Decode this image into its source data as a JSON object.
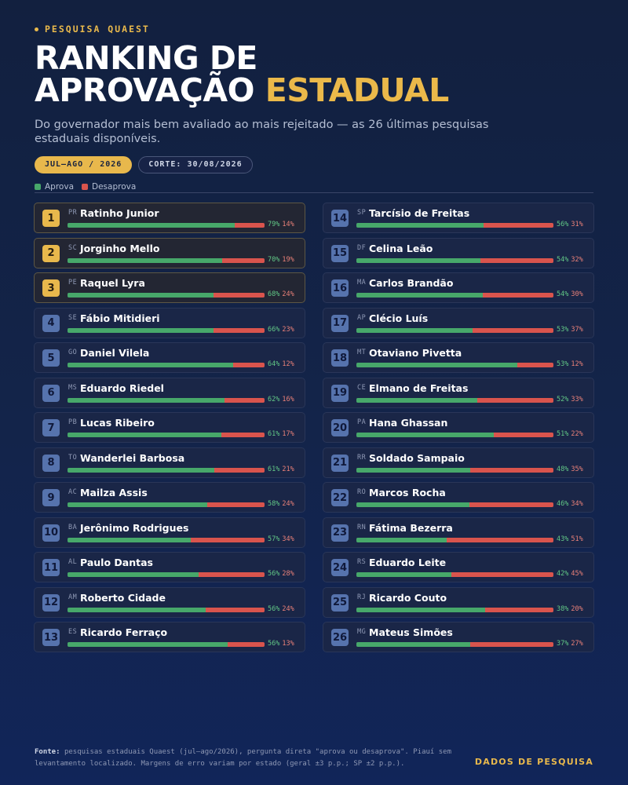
{
  "header": {
    "eyebrow": "PESQUISA QUAEST",
    "title_line1": "RANKING DE",
    "title_line2_plain": "APROVAÇÃO",
    "title_line2_accent": "ESTADUAL",
    "subtitle": "Do governador mais bem avaliado ao mais rejeitado — as 26 últimas pesquisas estaduais disponíveis.",
    "period_pill": "JUL–AGO / 2026",
    "cutoff_pill": "CORTE: 30/08/2026"
  },
  "legend": {
    "approve_label": "Aprova",
    "disapprove_label": "Desaprova"
  },
  "colors": {
    "approve": "#47a86a",
    "disapprove": "#d9544d",
    "accent": "#e8b84c",
    "background": "#13244a"
  },
  "footer": {
    "source_label": "Fonte:",
    "source_text": "pesquisas estaduais Quaest (jul–ago/2026), pergunta direta \"aprova ou desaprova\". Piauí sem levantamento localizado. Margens de erro variam por estado (geral ±3 p.p.; SP ±2 p.p.).",
    "brand": "DADOS DE PESQUISA"
  },
  "chart_data": {
    "type": "bar",
    "stacked": true,
    "orientation": "horizontal",
    "unit": "%",
    "items": [
      {
        "rank": 1,
        "uf": "PR",
        "name": "Ratinho Junior",
        "approve": 79,
        "disapprove": 14
      },
      {
        "rank": 2,
        "uf": "SC",
        "name": "Jorginho Mello",
        "approve": 70,
        "disapprove": 19
      },
      {
        "rank": 3,
        "uf": "PE",
        "name": "Raquel Lyra",
        "approve": 68,
        "disapprove": 24
      },
      {
        "rank": 4,
        "uf": "SE",
        "name": "Fábio Mitidieri",
        "approve": 66,
        "disapprove": 23
      },
      {
        "rank": 5,
        "uf": "GO",
        "name": "Daniel Vilela",
        "approve": 64,
        "disapprove": 12
      },
      {
        "rank": 6,
        "uf": "MS",
        "name": "Eduardo Riedel",
        "approve": 62,
        "disapprove": 16
      },
      {
        "rank": 7,
        "uf": "PB",
        "name": "Lucas Ribeiro",
        "approve": 61,
        "disapprove": 17
      },
      {
        "rank": 8,
        "uf": "TO",
        "name": "Wanderlei Barbosa",
        "approve": 61,
        "disapprove": 21
      },
      {
        "rank": 9,
        "uf": "AC",
        "name": "Mailza Assis",
        "approve": 58,
        "disapprove": 24
      },
      {
        "rank": 10,
        "uf": "BA",
        "name": "Jerônimo Rodrigues",
        "approve": 57,
        "disapprove": 34
      },
      {
        "rank": 11,
        "uf": "AL",
        "name": "Paulo Dantas",
        "approve": 56,
        "disapprove": 28
      },
      {
        "rank": 12,
        "uf": "AM",
        "name": "Roberto Cidade",
        "approve": 56,
        "disapprove": 24
      },
      {
        "rank": 13,
        "uf": "ES",
        "name": "Ricardo Ferraço",
        "approve": 56,
        "disapprove": 13
      },
      {
        "rank": 14,
        "uf": "SP",
        "name": "Tarcísio de Freitas",
        "approve": 56,
        "disapprove": 31
      },
      {
        "rank": 15,
        "uf": "DF",
        "name": "Celina Leão",
        "approve": 54,
        "disapprove": 32
      },
      {
        "rank": 16,
        "uf": "MA",
        "name": "Carlos Brandão",
        "approve": 54,
        "disapprove": 30
      },
      {
        "rank": 17,
        "uf": "AP",
        "name": "Clécio Luís",
        "approve": 53,
        "disapprove": 37
      },
      {
        "rank": 18,
        "uf": "MT",
        "name": "Otaviano Pivetta",
        "approve": 53,
        "disapprove": 12
      },
      {
        "rank": 19,
        "uf": "CE",
        "name": "Elmano de Freitas",
        "approve": 52,
        "disapprove": 33
      },
      {
        "rank": 20,
        "uf": "PA",
        "name": "Hana Ghassan",
        "approve": 51,
        "disapprove": 22
      },
      {
        "rank": 21,
        "uf": "RR",
        "name": "Soldado Sampaio",
        "approve": 48,
        "disapprove": 35
      },
      {
        "rank": 22,
        "uf": "RO",
        "name": "Marcos Rocha",
        "approve": 46,
        "disapprove": 34
      },
      {
        "rank": 23,
        "uf": "RN",
        "name": "Fátima Bezerra",
        "approve": 43,
        "disapprove": 51
      },
      {
        "rank": 24,
        "uf": "RS",
        "name": "Eduardo Leite",
        "approve": 42,
        "disapprove": 45
      },
      {
        "rank": 25,
        "uf": "RJ",
        "name": "Ricardo Couto",
        "approve": 38,
        "disapprove": 20
      },
      {
        "rank": 26,
        "uf": "MG",
        "name": "Mateus Simões",
        "approve": 37,
        "disapprove": 27
      }
    ]
  }
}
